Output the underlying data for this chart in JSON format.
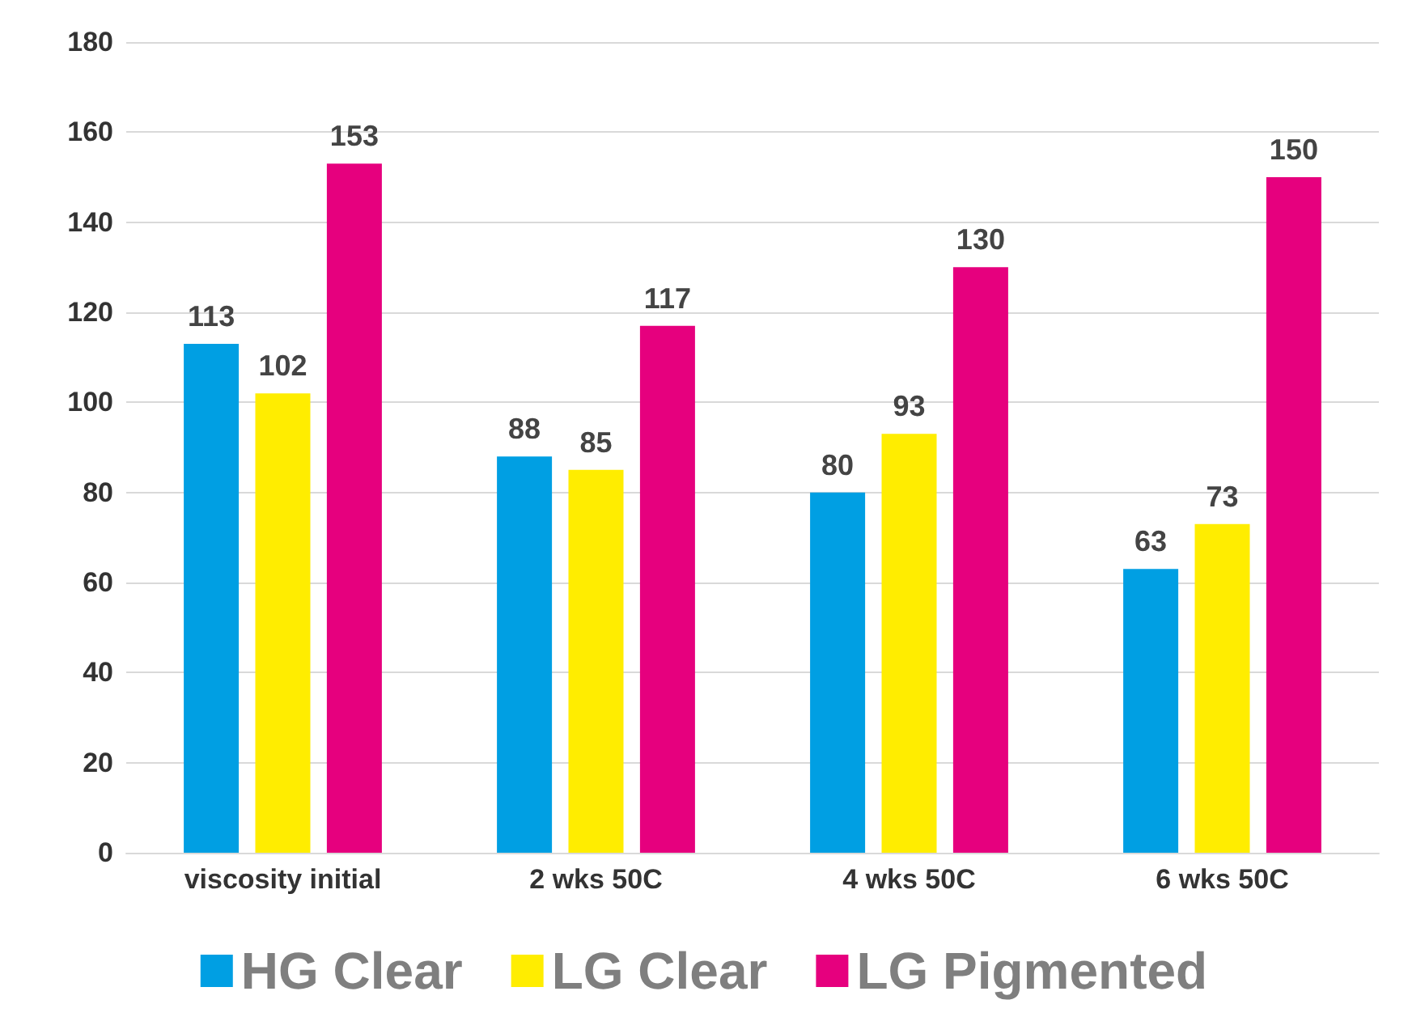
{
  "chart_data": {
    "type": "bar",
    "categories": [
      "viscosity initial",
      "2 wks 50C",
      "4 wks 50C",
      "6 wks 50C"
    ],
    "series": [
      {
        "name": "HG Clear",
        "color": "#009fe3",
        "values": [
          113,
          88,
          80,
          63
        ]
      },
      {
        "name": "LG Clear",
        "color": "#ffed00",
        "values": [
          102,
          85,
          93,
          73
        ]
      },
      {
        "name": "LG Pigmented",
        "color": "#e6007e",
        "values": [
          153,
          117,
          130,
          150
        ]
      }
    ],
    "ylim": [
      0,
      180
    ],
    "yticks": [
      0,
      20,
      40,
      60,
      80,
      100,
      120,
      140,
      160,
      180
    ],
    "grid": "y",
    "legend": "bottom",
    "data_labels": true
  }
}
